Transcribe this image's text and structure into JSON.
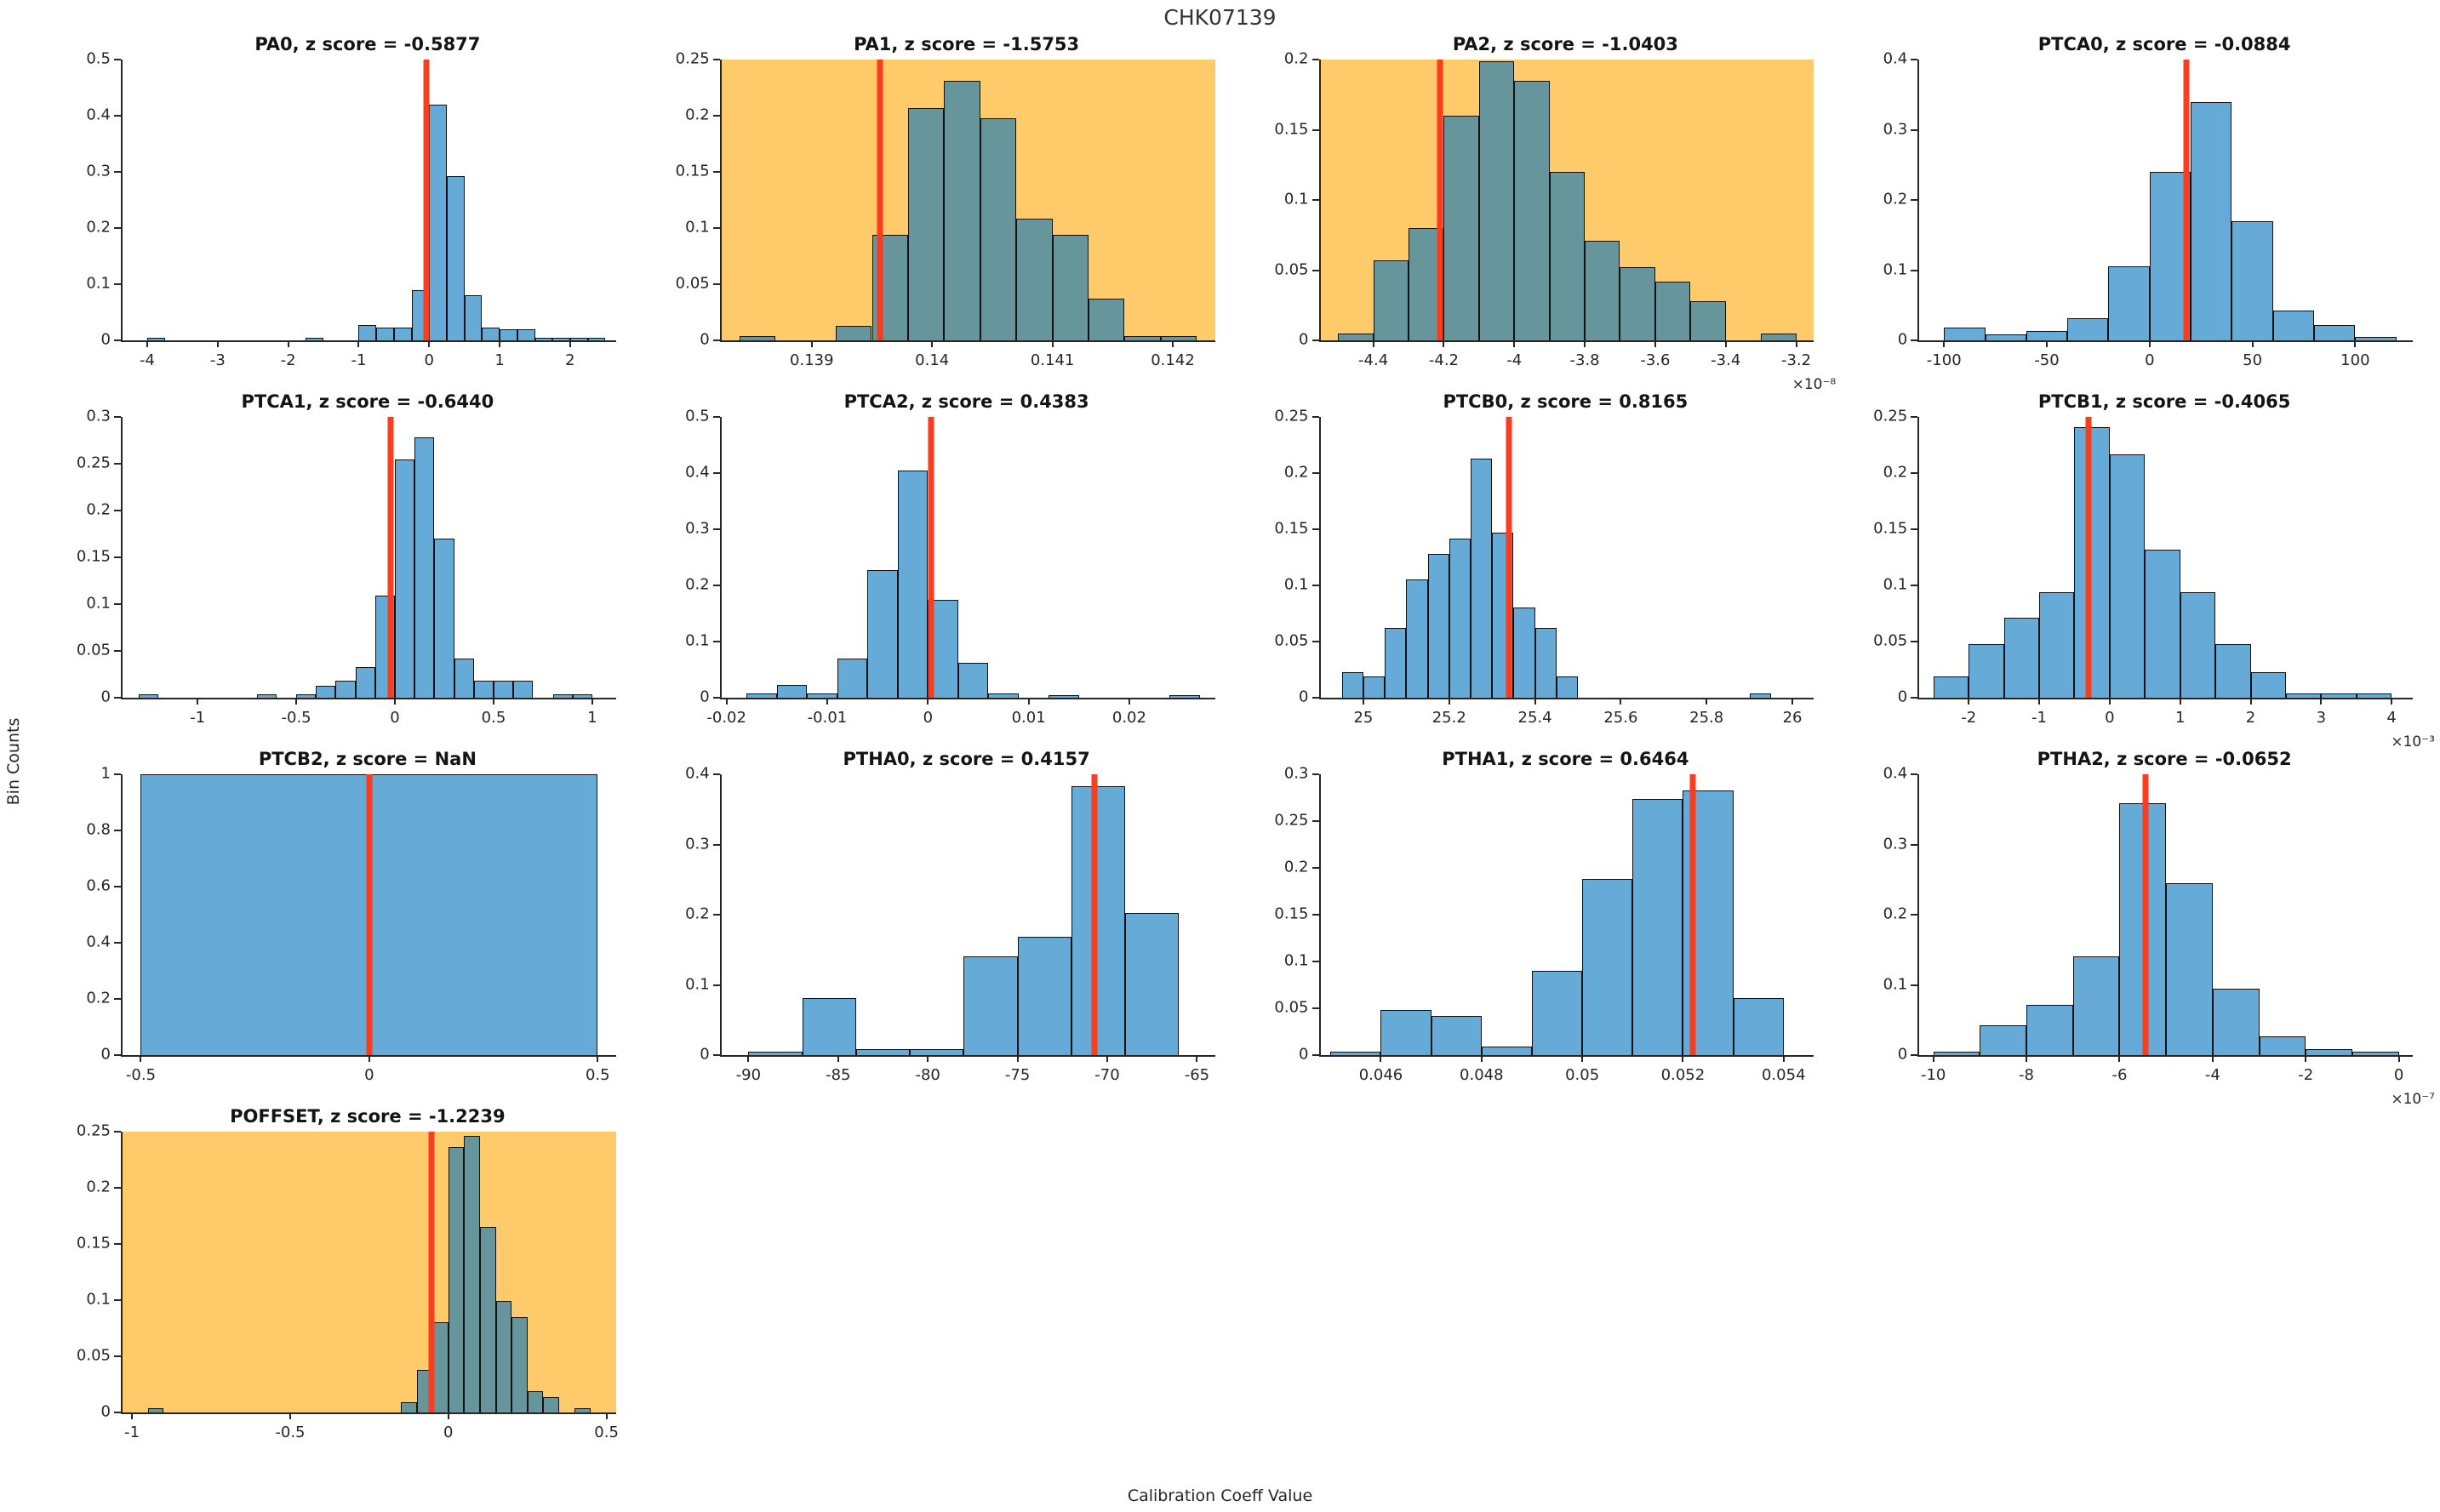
{
  "figure": {
    "title": "CHK07139",
    "ylabel": "Bin Counts",
    "xlabel": "Calibration Coeff Value"
  },
  "colors": {
    "bar_blue": "#66AAD7",
    "bar_teal_on_flag": "#66959B",
    "flag_background": "#FFCA69",
    "red_marker": "#FA3C1F",
    "axis": "#262626"
  },
  "chart_data": [
    {
      "name": "PA0",
      "type": "bar",
      "title": "PA0, z score = -0.5877",
      "z_score": "-0.5877",
      "flagged": false,
      "xlim": [
        -4.35,
        2.65
      ],
      "ylim": [
        0,
        0.5
      ],
      "yticks": [
        0,
        0.1,
        0.2,
        0.3,
        0.4,
        0.5
      ],
      "xticks": [
        {
          "v": -4,
          "l": "-4"
        },
        {
          "v": -3,
          "l": "-3"
        },
        {
          "v": -2,
          "l": "-2"
        },
        {
          "v": -1,
          "l": "-1"
        },
        {
          "v": 0,
          "l": "0"
        },
        {
          "v": 1,
          "l": "1"
        },
        {
          "v": 2,
          "l": "2"
        }
      ],
      "exponent_label": null,
      "red_line_x": -0.04,
      "bin_width": 0.25,
      "bars": [
        [
          -4.0,
          0.004
        ],
        [
          -1.75,
          0.004
        ],
        [
          -1.0,
          0.027
        ],
        [
          -0.75,
          0.022
        ],
        [
          -0.5,
          0.022
        ],
        [
          -0.25,
          0.09
        ],
        [
          0,
          0.42
        ],
        [
          0.25,
          0.292
        ],
        [
          0.5,
          0.08
        ],
        [
          0.75,
          0.022
        ],
        [
          1.0,
          0.02
        ],
        [
          1.25,
          0.019
        ],
        [
          1.5,
          0.005
        ],
        [
          1.75,
          0.005
        ],
        [
          2.0,
          0.005
        ],
        [
          2.25,
          0.005
        ]
      ]
    },
    {
      "name": "PA1",
      "type": "bar",
      "title": "PA1, z score = -1.5753",
      "z_score": "-1.5753",
      "flagged": true,
      "xlim": [
        0.13825,
        0.14235
      ],
      "ylim": [
        0,
        0.25
      ],
      "yticks": [
        0,
        0.05,
        0.1,
        0.15,
        0.2,
        0.25
      ],
      "xticks": [
        {
          "v": 0.139,
          "l": "0.139"
        },
        {
          "v": 0.14,
          "l": "0.14"
        },
        {
          "v": 0.141,
          "l": "0.141"
        },
        {
          "v": 0.142,
          "l": "0.142"
        }
      ],
      "exponent_label": null,
      "red_line_x": 0.13957,
      "bin_width": 0.0003,
      "bars": [
        [
          0.1384,
          0.004
        ],
        [
          0.1392,
          0.013
        ],
        [
          0.1395,
          0.094
        ],
        [
          0.1398,
          0.207
        ],
        [
          0.1401,
          0.231
        ],
        [
          0.1404,
          0.198
        ],
        [
          0.1407,
          0.108
        ],
        [
          0.141,
          0.094
        ],
        [
          0.1413,
          0.037
        ],
        [
          0.1416,
          0.004
        ],
        [
          0.1419,
          0.004
        ]
      ]
    },
    {
      "name": "PA2",
      "type": "bar",
      "title": "PA2, z score = -1.0403",
      "z_score": "-1.0403",
      "flagged": true,
      "xlim": [
        -4.55e-08,
        -3.15e-08
      ],
      "ylim": [
        0,
        0.2
      ],
      "yticks": [
        0,
        0.05,
        0.1,
        0.15,
        0.2
      ],
      "xticks": [
        {
          "v": -4.4e-08,
          "l": "-4.4"
        },
        {
          "v": -4.2e-08,
          "l": "-4.2"
        },
        {
          "v": -4e-08,
          "l": "-4"
        },
        {
          "v": -3.8e-08,
          "l": "-3.8"
        },
        {
          "v": -3.6e-08,
          "l": "-3.6"
        },
        {
          "v": -3.4e-08,
          "l": "-3.4"
        },
        {
          "v": -3.2e-08,
          "l": "-3.2"
        }
      ],
      "exponent_label": "×10⁻⁸",
      "red_line_x": -4.21e-08,
      "bin_width": 1e-09,
      "bars": [
        [
          -4.5e-08,
          0.005
        ],
        [
          -4.4e-08,
          0.057
        ],
        [
          -4.3e-08,
          0.08
        ],
        [
          -4.2e-08,
          0.16
        ],
        [
          -4.1e-08,
          0.199
        ],
        [
          -4e-08,
          0.185
        ],
        [
          -3.9e-08,
          0.12
        ],
        [
          -3.8e-08,
          0.071
        ],
        [
          -3.7e-08,
          0.052
        ],
        [
          -3.6e-08,
          0.042
        ],
        [
          -3.5e-08,
          0.028
        ],
        [
          -3.3e-08,
          0.005
        ]
      ]
    },
    {
      "name": "PTCA0",
      "type": "bar",
      "title": "PTCA0, z score = -0.0884",
      "z_score": "-0.0884",
      "flagged": false,
      "xlim": [
        -112,
        128
      ],
      "ylim": [
        0,
        0.4
      ],
      "yticks": [
        0,
        0.1,
        0.2,
        0.3,
        0.4
      ],
      "xticks": [
        {
          "v": -100,
          "l": "-100"
        },
        {
          "v": -50,
          "l": "-50"
        },
        {
          "v": 0,
          "l": "0"
        },
        {
          "v": 50,
          "l": "50"
        },
        {
          "v": 100,
          "l": "100"
        }
      ],
      "exponent_label": null,
      "red_line_x": 18,
      "bin_width": 20,
      "bars": [
        [
          -100,
          0.018
        ],
        [
          -80,
          0.008
        ],
        [
          -60,
          0.013
        ],
        [
          -40,
          0.032
        ],
        [
          -20,
          0.105
        ],
        [
          0,
          0.24
        ],
        [
          20,
          0.34
        ],
        [
          40,
          0.17
        ],
        [
          60,
          0.042
        ],
        [
          80,
          0.022
        ],
        [
          100,
          0.005
        ]
      ]
    },
    {
      "name": "PTCA1",
      "type": "bar",
      "title": "PTCA1, z score = -0.6440",
      "z_score": "-0.6440",
      "flagged": false,
      "xlim": [
        -1.38,
        1.12
      ],
      "ylim": [
        0,
        0.3
      ],
      "yticks": [
        0,
        0.05,
        0.1,
        0.15,
        0.2,
        0.25,
        0.3
      ],
      "xticks": [
        {
          "v": -1,
          "l": "-1"
        },
        {
          "v": -0.5,
          "l": "-0.5"
        },
        {
          "v": 0,
          "l": "0"
        },
        {
          "v": 0.5,
          "l": "0.5"
        },
        {
          "v": 1,
          "l": "1"
        }
      ],
      "exponent_label": null,
      "red_line_x": -0.02,
      "bin_width": 0.1,
      "bars": [
        [
          -1.3,
          0.004
        ],
        [
          -0.7,
          0.004
        ],
        [
          -0.5,
          0.004
        ],
        [
          -0.4,
          0.013
        ],
        [
          -0.3,
          0.018
        ],
        [
          -0.2,
          0.033
        ],
        [
          -0.1,
          0.109
        ],
        [
          0,
          0.255
        ],
        [
          0.1,
          0.278
        ],
        [
          0.2,
          0.17
        ],
        [
          0.3,
          0.042
        ],
        [
          0.4,
          0.018
        ],
        [
          0.5,
          0.018
        ],
        [
          0.6,
          0.018
        ],
        [
          0.8,
          0.004
        ],
        [
          0.9,
          0.004
        ]
      ]
    },
    {
      "name": "PTCA2",
      "type": "bar",
      "title": "PTCA2, z score = 0.4383",
      "z_score": "0.4383",
      "flagged": false,
      "xlim": [
        -0.0205,
        0.0285
      ],
      "ylim": [
        0,
        0.5
      ],
      "yticks": [
        0,
        0.1,
        0.2,
        0.3,
        0.4,
        0.5
      ],
      "xticks": [
        {
          "v": -0.02,
          "l": "-0.02"
        },
        {
          "v": -0.01,
          "l": "-0.01"
        },
        {
          "v": 0,
          "l": "0"
        },
        {
          "v": 0.01,
          "l": "0.01"
        },
        {
          "v": 0.02,
          "l": "0.02"
        }
      ],
      "exponent_label": null,
      "red_line_x": 0.0003,
      "bin_width": 0.003,
      "bars": [
        [
          -0.018,
          0.008
        ],
        [
          -0.015,
          0.022
        ],
        [
          -0.012,
          0.008
        ],
        [
          -0.009,
          0.07
        ],
        [
          -0.006,
          0.227
        ],
        [
          -0.003,
          0.405
        ],
        [
          0,
          0.174
        ],
        [
          0.003,
          0.062
        ],
        [
          0.006,
          0.008
        ],
        [
          0.012,
          0.004
        ],
        [
          0.024,
          0.004
        ]
      ]
    },
    {
      "name": "PTCB0",
      "type": "bar",
      "title": "PTCB0, z score = 0.8165",
      "z_score": "0.8165",
      "flagged": false,
      "xlim": [
        24.9,
        26.05
      ],
      "ylim": [
        0,
        0.25
      ],
      "yticks": [
        0,
        0.05,
        0.1,
        0.15,
        0.2,
        0.25
      ],
      "xticks": [
        {
          "v": 25,
          "l": "25"
        },
        {
          "v": 25.2,
          "l": "25.2"
        },
        {
          "v": 25.4,
          "l": "25.4"
        },
        {
          "v": 25.6,
          "l": "25.6"
        },
        {
          "v": 25.8,
          "l": "25.8"
        },
        {
          "v": 26,
          "l": "26"
        }
      ],
      "exponent_label": null,
      "red_line_x": 25.34,
      "bin_width": 0.05,
      "bars": [
        [
          24.95,
          0.023
        ],
        [
          25.0,
          0.019
        ],
        [
          25.05,
          0.062
        ],
        [
          25.1,
          0.105
        ],
        [
          25.15,
          0.128
        ],
        [
          25.2,
          0.142
        ],
        [
          25.25,
          0.213
        ],
        [
          25.3,
          0.147
        ],
        [
          25.35,
          0.08
        ],
        [
          25.4,
          0.062
        ],
        [
          25.45,
          0.019
        ],
        [
          25.9,
          0.004
        ]
      ]
    },
    {
      "name": "PTCB1",
      "type": "bar",
      "title": "PTCB1, z score = -0.4065",
      "z_score": "-0.4065",
      "flagged": false,
      "xlim": [
        -0.0027,
        0.0043
      ],
      "ylim": [
        0,
        0.25
      ],
      "yticks": [
        0,
        0.05,
        0.1,
        0.15,
        0.2,
        0.25
      ],
      "xticks": [
        {
          "v": -0.002,
          "l": "-2"
        },
        {
          "v": -0.001,
          "l": "-1"
        },
        {
          "v": 0,
          "l": "0"
        },
        {
          "v": 0.001,
          "l": "1"
        },
        {
          "v": 0.002,
          "l": "2"
        },
        {
          "v": 0.003,
          "l": "3"
        },
        {
          "v": 0.004,
          "l": "4"
        }
      ],
      "exponent_label": "×10⁻³",
      "red_line_x": -0.0003,
      "bin_width": 0.0005,
      "bars": [
        [
          -0.0025,
          0.019
        ],
        [
          -0.002,
          0.048
        ],
        [
          -0.0015,
          0.071
        ],
        [
          -0.001,
          0.094
        ],
        [
          -0.0005,
          0.241
        ],
        [
          0,
          0.217
        ],
        [
          0.0005,
          0.132
        ],
        [
          0.001,
          0.094
        ],
        [
          0.0015,
          0.048
        ],
        [
          0.002,
          0.023
        ],
        [
          0.0025,
          0.004
        ],
        [
          0.003,
          0.004
        ],
        [
          0.0035,
          0.004
        ]
      ]
    },
    {
      "name": "PTCB2",
      "type": "bar",
      "title": "PTCB2, z score = NaN",
      "z_score": "NaN",
      "flagged": false,
      "xlim": [
        -0.54,
        0.54
      ],
      "ylim": [
        0,
        1
      ],
      "yticks": [
        0,
        0.2,
        0.4,
        0.6,
        0.8,
        1
      ],
      "xticks": [
        {
          "v": -0.5,
          "l": "-0.5"
        },
        {
          "v": 0,
          "l": "0"
        },
        {
          "v": 0.5,
          "l": "0.5"
        }
      ],
      "exponent_label": null,
      "red_line_x": 0,
      "bin_width": 1.0,
      "bars": [
        [
          -0.5,
          1.0
        ]
      ]
    },
    {
      "name": "PTHA0",
      "type": "bar",
      "title": "PTHA0, z score = 0.4157",
      "z_score": "0.4157",
      "flagged": false,
      "xlim": [
        -91.5,
        -64
      ],
      "ylim": [
        0,
        0.4
      ],
      "yticks": [
        0,
        0.1,
        0.2,
        0.3,
        0.4
      ],
      "xticks": [
        {
          "v": -90,
          "l": "-90"
        },
        {
          "v": -85,
          "l": "-85"
        },
        {
          "v": -80,
          "l": "-80"
        },
        {
          "v": -75,
          "l": "-75"
        },
        {
          "v": -70,
          "l": "-70"
        },
        {
          "v": -65,
          "l": "-65"
        }
      ],
      "exponent_label": null,
      "red_line_x": -70.7,
      "bin_width": 3,
      "bars": [
        [
          -90,
          0.005
        ],
        [
          -87,
          0.081
        ],
        [
          -84,
          0.008
        ],
        [
          -81,
          0.008
        ],
        [
          -78,
          0.141
        ],
        [
          -75,
          0.169
        ],
        [
          -72,
          0.383
        ],
        [
          -69,
          0.203
        ]
      ]
    },
    {
      "name": "PTHA1",
      "type": "bar",
      "title": "PTHA1, z score = 0.6464",
      "z_score": "0.6464",
      "flagged": false,
      "xlim": [
        0.0448,
        0.0546
      ],
      "ylim": [
        0,
        0.3
      ],
      "yticks": [
        0,
        0.05,
        0.1,
        0.15,
        0.2,
        0.25,
        0.3
      ],
      "xticks": [
        {
          "v": 0.046,
          "l": "0.046"
        },
        {
          "v": 0.048,
          "l": "0.048"
        },
        {
          "v": 0.05,
          "l": "0.05"
        },
        {
          "v": 0.052,
          "l": "0.052"
        },
        {
          "v": 0.054,
          "l": "0.054"
        }
      ],
      "exponent_label": null,
      "red_line_x": 0.0522,
      "bin_width": 0.001,
      "bars": [
        [
          0.045,
          0.004
        ],
        [
          0.046,
          0.048
        ],
        [
          0.047,
          0.042
        ],
        [
          0.048,
          0.009
        ],
        [
          0.049,
          0.09
        ],
        [
          0.05,
          0.188
        ],
        [
          0.051,
          0.274
        ],
        [
          0.052,
          0.283
        ],
        [
          0.053,
          0.061
        ]
      ]
    },
    {
      "name": "PTHA2",
      "type": "bar",
      "title": "PTHA2, z score = -0.0652",
      "z_score": "-0.0652",
      "flagged": false,
      "xlim": [
        -1.03e-06,
        3e-08
      ],
      "ylim": [
        0,
        0.4
      ],
      "yticks": [
        0,
        0.1,
        0.2,
        0.3,
        0.4
      ],
      "xticks": [
        {
          "v": -1e-06,
          "l": "-10"
        },
        {
          "v": -8e-07,
          "l": "-8"
        },
        {
          "v": -6e-07,
          "l": "-6"
        },
        {
          "v": -4e-07,
          "l": "-4"
        },
        {
          "v": -2e-07,
          "l": "-2"
        },
        {
          "v": 0,
          "l": "0"
        }
      ],
      "exponent_label": "×10⁻⁷",
      "red_line_x": -5.45e-07,
      "bin_width": 1e-07,
      "bars": [
        [
          -1e-06,
          0.005
        ],
        [
          -9e-07,
          0.042
        ],
        [
          -8e-07,
          0.071
        ],
        [
          -7e-07,
          0.141
        ],
        [
          -6e-07,
          0.359
        ],
        [
          -5e-07,
          0.245
        ],
        [
          -4e-07,
          0.095
        ],
        [
          -3e-07,
          0.027
        ],
        [
          -2e-07,
          0.008
        ],
        [
          -1e-07,
          0.005
        ]
      ]
    },
    {
      "name": "POFFSET",
      "type": "bar",
      "title": "POFFSET, z score = -1.2239",
      "z_score": "-1.2239",
      "flagged": true,
      "xlim": [
        -1.03,
        0.53
      ],
      "ylim": [
        0,
        0.25
      ],
      "yticks": [
        0,
        0.05,
        0.1,
        0.15,
        0.2,
        0.25
      ],
      "xticks": [
        {
          "v": -1,
          "l": "-1"
        },
        {
          "v": -0.5,
          "l": "-0.5"
        },
        {
          "v": 0,
          "l": "0"
        },
        {
          "v": 0.5,
          "l": "0.5"
        }
      ],
      "exponent_label": null,
      "red_line_x": -0.052,
      "bin_width": 0.05,
      "bars": [
        [
          -0.95,
          0.004
        ],
        [
          -0.15,
          0.009
        ],
        [
          -0.1,
          0.038
        ],
        [
          -0.05,
          0.08
        ],
        [
          0,
          0.236
        ],
        [
          0.05,
          0.246
        ],
        [
          0.1,
          0.165
        ],
        [
          0.15,
          0.099
        ],
        [
          0.2,
          0.085
        ],
        [
          0.25,
          0.019
        ],
        [
          0.3,
          0.014
        ],
        [
          0.4,
          0.004
        ]
      ]
    }
  ]
}
